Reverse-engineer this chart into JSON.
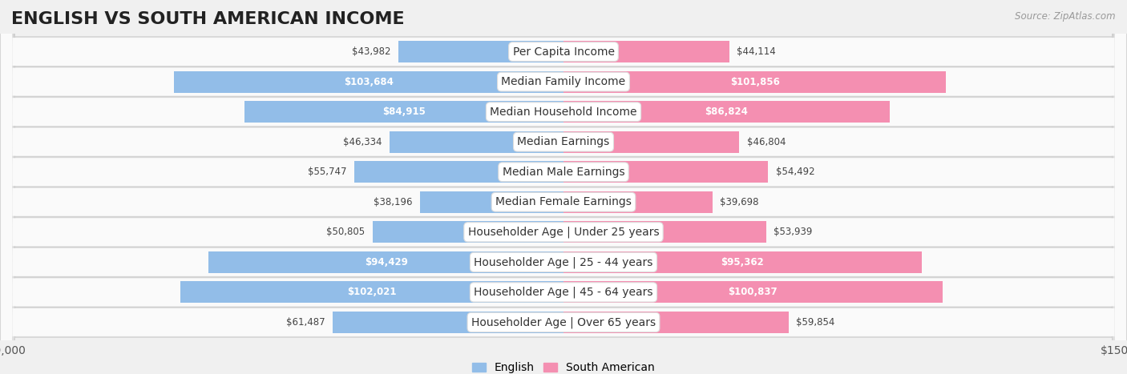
{
  "title": "ENGLISH VS SOUTH AMERICAN INCOME",
  "source": "Source: ZipAtlas.com",
  "categories": [
    "Per Capita Income",
    "Median Family Income",
    "Median Household Income",
    "Median Earnings",
    "Median Male Earnings",
    "Median Female Earnings",
    "Householder Age | Under 25 years",
    "Householder Age | 25 - 44 years",
    "Householder Age | 45 - 64 years",
    "Householder Age | Over 65 years"
  ],
  "english_values": [
    43982,
    103684,
    84915,
    46334,
    55747,
    38196,
    50805,
    94429,
    102021,
    61487
  ],
  "south_american_values": [
    44114,
    101856,
    86824,
    46804,
    54492,
    39698,
    53939,
    95362,
    100837,
    59854
  ],
  "english_labels": [
    "$43,982",
    "$103,684",
    "$84,915",
    "$46,334",
    "$55,747",
    "$38,196",
    "$50,805",
    "$94,429",
    "$102,021",
    "$61,487"
  ],
  "south_american_labels": [
    "$44,114",
    "$101,856",
    "$86,824",
    "$46,804",
    "$54,492",
    "$39,698",
    "$53,939",
    "$95,362",
    "$100,837",
    "$59,854"
  ],
  "english_color": "#92BDE8",
  "south_american_color": "#F48FB1",
  "bar_height": 0.72,
  "max_value": 150000,
  "background_color": "#f0f0f0",
  "row_bg_light": "#f8f8f8",
  "row_bg_dark": "#e8e8e8",
  "label_inside_threshold": 68000,
  "title_fontsize": 16,
  "tick_fontsize": 10,
  "label_fontsize": 8.5,
  "category_fontsize": 10
}
